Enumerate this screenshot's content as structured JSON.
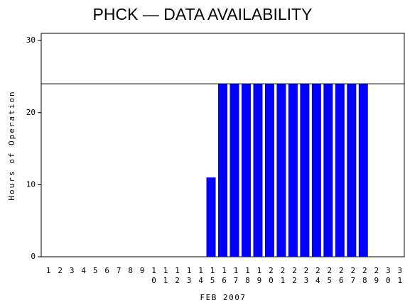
{
  "chart_data": {
    "type": "bar",
    "title": "PHCK — DATA AVAILABILITY",
    "x_label": "FEB 2007",
    "y_label": "Hours of Operation",
    "categories": [
      "1",
      "2",
      "3",
      "4",
      "5",
      "6",
      "7",
      "8",
      "9",
      "10",
      "11",
      "12",
      "13",
      "14",
      "15",
      "16",
      "17",
      "18",
      "19",
      "20",
      "21",
      "22",
      "23",
      "24",
      "25",
      "26",
      "27",
      "28",
      "29",
      "30",
      "31"
    ],
    "values": [
      0,
      0,
      0,
      0,
      0,
      0,
      0,
      0,
      0,
      0,
      0,
      0,
      0,
      0,
      11,
      24,
      24,
      24,
      24,
      24,
      24,
      24,
      24,
      24,
      24,
      24,
      24,
      24,
      0,
      0,
      0
    ],
    "color": "#0000ff",
    "reference_line": 24,
    "ylim": [
      0,
      31
    ],
    "yticks": [
      0,
      10,
      20,
      30
    ]
  }
}
